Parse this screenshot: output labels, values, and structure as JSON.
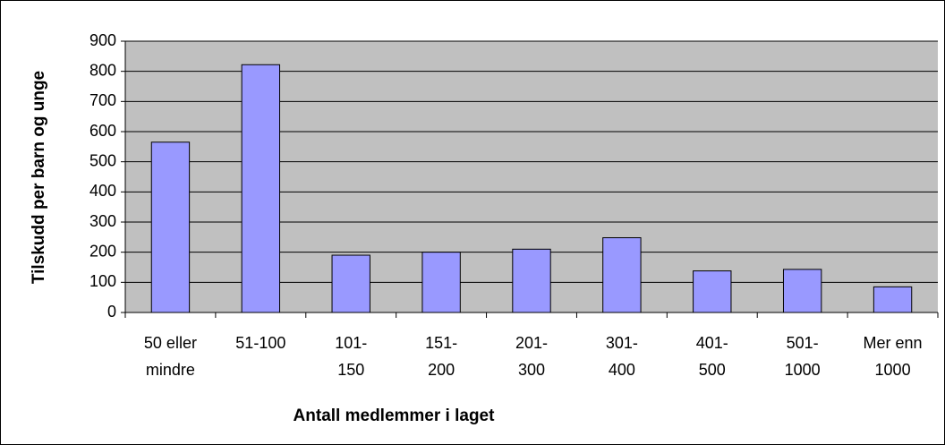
{
  "chart_data": {
    "type": "bar",
    "xlabel": "Antall medlemmer i laget",
    "ylabel": "Tilskudd per barn og unge",
    "categories": [
      "50 eller mindre",
      "51-100",
      "101-150",
      "151-200",
      "201-300",
      "301-400",
      "401-500",
      "501-1000",
      "Mer enn 1000"
    ],
    "values": [
      565,
      822,
      190,
      200,
      210,
      248,
      138,
      143,
      85
    ],
    "color": "#9999ff",
    "ylim": [
      0,
      900
    ],
    "yticks": [
      0,
      100,
      200,
      300,
      400,
      500,
      600,
      700,
      800,
      900
    ],
    "grid": true
  }
}
